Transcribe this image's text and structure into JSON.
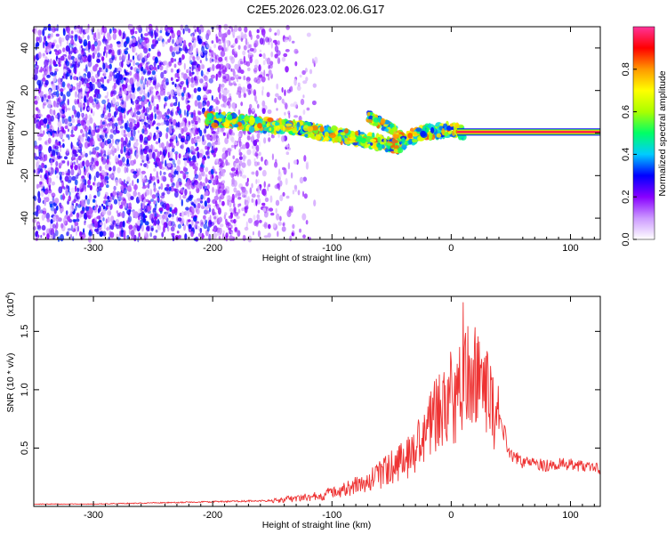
{
  "title": "C2E5.2026.023.02.06.G17",
  "colorbar": {
    "label": "Normalized spectral amplitude",
    "ticks": [
      "0.0",
      "0.2",
      "0.4",
      "0.6",
      "0.8"
    ],
    "tick_values": [
      0.0,
      0.2,
      0.4,
      0.6,
      0.8
    ],
    "range": [
      0,
      1
    ],
    "colors": [
      "#ffffff",
      "#cc99ff",
      "#8800ff",
      "#0000ff",
      "#00ccff",
      "#00ff66",
      "#aaff00",
      "#ffff00",
      "#ff9900",
      "#ff0000",
      "#ff3399"
    ]
  },
  "chart_data": [
    {
      "type": "heatmap",
      "xlabel": "Height of straight line (km)",
      "ylabel": "Frequency (Hz)",
      "xlim": [
        -350,
        125
      ],
      "ylim": [
        -50,
        50
      ],
      "xticks": [
        -300,
        -200,
        -100,
        0,
        100
      ],
      "xtick_labels": [
        "-300",
        "-200",
        "-100",
        "0",
        "100"
      ],
      "yticks": [
        -40,
        -20,
        0,
        20,
        40
      ],
      "ytick_labels": [
        "-40",
        "-20",
        "0",
        "20",
        "40"
      ],
      "grid": false,
      "trace": {
        "x": [
          -205,
          -195,
          -185,
          -175,
          -165,
          -155,
          -145,
          -135,
          -125,
          -115,
          -105,
          -95,
          -85,
          -75,
          -65,
          -55,
          -45,
          -35,
          -25,
          -15,
          -5,
          0,
          5,
          10
        ],
        "y": [
          6,
          6,
          6,
          5,
          4,
          4,
          3,
          3,
          2,
          1,
          0,
          -1,
          -2,
          -3,
          -4,
          -5,
          -6,
          -2,
          0,
          1,
          1,
          2,
          1,
          0
        ]
      },
      "branch": {
        "x": [
          -70,
          -60,
          -50,
          -40
        ],
        "y": [
          8,
          5,
          2,
          -3
        ]
      },
      "line": {
        "x_start": 5,
        "x_end": 125,
        "y": 0.5,
        "amplitude": 1.0
      }
    },
    {
      "type": "line",
      "xlabel": "Height of straight line (km)",
      "ylabel": "SNR (10 * v/v)",
      "y_multiplier": "(x10",
      "y_multiplier_exp": "4",
      "y_multiplier_close": ")",
      "xlim": [
        -350,
        125
      ],
      "ylim": [
        0,
        18000
      ],
      "xticks": [
        -300,
        -200,
        -100,
        0,
        100
      ],
      "xtick_labels": [
        "-300",
        "-200",
        "-100",
        "0",
        "100"
      ],
      "yticks": [
        5000,
        10000,
        15000
      ],
      "ytick_labels": [
        "0.5",
        "1.0",
        "1.5"
      ],
      "series": [
        {
          "color": "#ee3333",
          "x": [
            -350,
            -300,
            -250,
            -200,
            -150,
            -130,
            -110,
            -100,
            -90,
            -80,
            -70,
            -60,
            -50,
            -40,
            -30,
            -25,
            -20,
            -15,
            -10,
            -5,
            0,
            5,
            10,
            15,
            20,
            25,
            30,
            35,
            40,
            45,
            50,
            60,
            70,
            80,
            90,
            100,
            110,
            120,
            125
          ],
          "y": [
            200,
            200,
            300,
            400,
            500,
            700,
            900,
            1200,
            1500,
            1800,
            2200,
            2700,
            3300,
            4000,
            4800,
            5800,
            6800,
            7400,
            8000,
            8600,
            9200,
            10000,
            10800,
            11000,
            10800,
            10200,
            9400,
            8300,
            7200,
            6000,
            4300,
            3800,
            3600,
            3500,
            3700,
            3600,
            3500,
            3300,
            3200
          ]
        }
      ],
      "annotations": [
        {
          "x": 10,
          "y": 17500,
          "text": ""
        }
      ]
    }
  ]
}
